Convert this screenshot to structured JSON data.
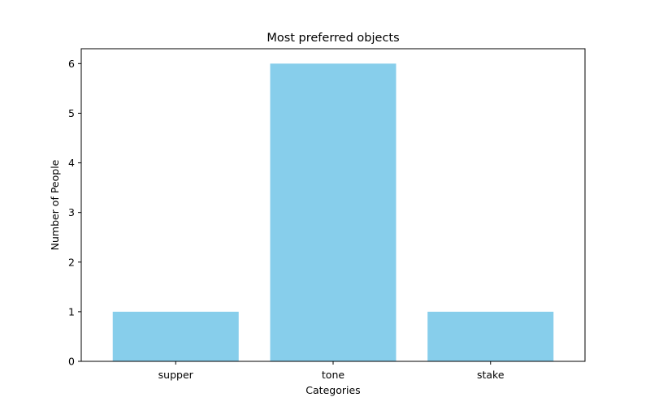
{
  "chart_data": {
    "type": "bar",
    "title": "Most preferred objects",
    "xlabel": "Categories",
    "ylabel": "Number of People",
    "categories": [
      "supper",
      "tone",
      "stake"
    ],
    "values": [
      1,
      6,
      1
    ],
    "ylim": [
      0,
      6.3
    ],
    "yticks": [
      "0",
      "1",
      "2",
      "3",
      "4",
      "5",
      "6"
    ],
    "bar_color": "#87CEEB",
    "grid": false,
    "legend": "none"
  }
}
